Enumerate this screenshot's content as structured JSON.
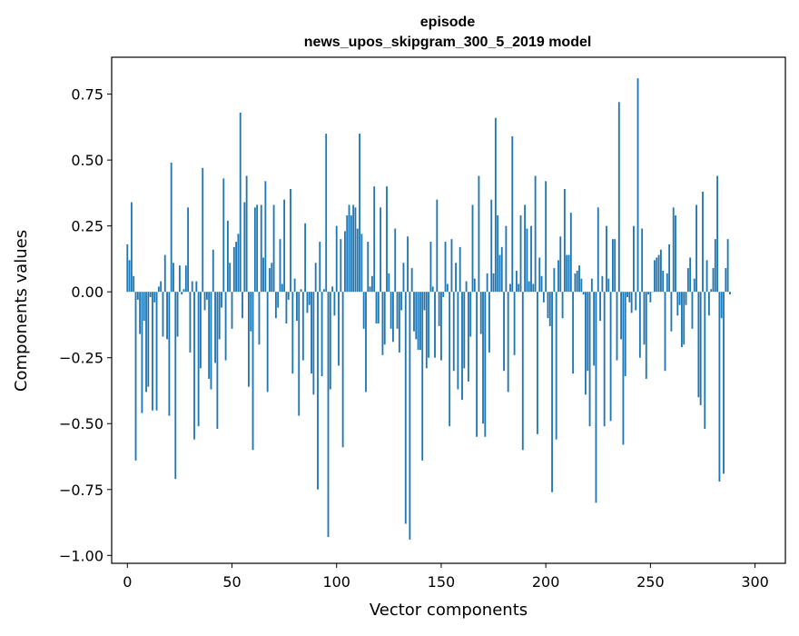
{
  "chart_data": {
    "type": "bar",
    "title": "episode",
    "subtitle": "news_upos_skipgram_300_5_2019 model",
    "xlabel": "Vector components",
    "ylabel": "Components values",
    "xlim": [
      -7.5,
      314.5
    ],
    "ylim": [
      -1.03,
      0.89
    ],
    "xticks": [
      0,
      50,
      100,
      150,
      200,
      250,
      300
    ],
    "xtick_labels": [
      "0",
      "50",
      "100",
      "150",
      "200",
      "250",
      "300"
    ],
    "yticks": [
      0.75,
      0.5,
      0.25,
      0.0,
      -0.25,
      -0.5,
      -0.75,
      -1.0
    ],
    "ytick_labels": [
      "0.75",
      "0.50",
      "0.25",
      "0.00",
      "−0.25",
      "−0.50",
      "−0.75",
      "−1.00"
    ],
    "bar_color": "#1f77b4",
    "grid": false,
    "values": [
      0.18,
      0.12,
      0.34,
      0.06,
      -0.64,
      -0.03,
      -0.16,
      -0.46,
      -0.11,
      -0.38,
      -0.36,
      -0.02,
      -0.45,
      -0.04,
      -0.45,
      0.02,
      0.04,
      -0.17,
      0.14,
      -0.18,
      -0.47,
      0.49,
      0.11,
      -0.71,
      -0.17,
      0.1,
      -0.01,
      0.01,
      0.1,
      0.32,
      -0.23,
      0.04,
      -0.56,
      0.04,
      -0.51,
      -0.29,
      0.47,
      -0.07,
      -0.03,
      -0.33,
      -0.37,
      0.16,
      -0.27,
      -0.52,
      -0.18,
      -0.06,
      0.43,
      -0.26,
      0.27,
      0.11,
      -0.14,
      0.17,
      0.19,
      0.22,
      0.68,
      -0.1,
      0.34,
      0.44,
      -0.36,
      -0.15,
      -0.6,
      0.32,
      0.33,
      -0.2,
      0.33,
      0.13,
      0.42,
      -0.38,
      0.09,
      0.11,
      0.33,
      -0.1,
      -0.06,
      0.2,
      0.03,
      0.35,
      -0.12,
      -0.03,
      0.39,
      -0.31,
      0.05,
      -0.11,
      -0.47,
      0.01,
      -0.26,
      0.26,
      -0.08,
      -0.05,
      -0.31,
      -0.39,
      0.11,
      -0.75,
      0.19,
      -0.32,
      0.01,
      0.6,
      -0.93,
      -0.37,
      0.02,
      -0.09,
      0.25,
      -0.28,
      0.2,
      -0.59,
      0.23,
      0.29,
      0.33,
      0.29,
      0.33,
      0.32,
      0.24,
      0.6,
      0.22,
      -0.14,
      -0.38,
      0.19,
      0.02,
      0.06,
      0.4,
      -0.12,
      -0.12,
      0.32,
      -0.24,
      -0.2,
      0.4,
      0.07,
      -0.14,
      -0.19,
      0.24,
      -0.14,
      -0.23,
      -0.07,
      0.11,
      -0.88,
      0.21,
      -0.94,
      0.09,
      -0.15,
      -0.18,
      -0.22,
      -0.22,
      -0.64,
      -0.07,
      -0.29,
      -0.25,
      0.19,
      0.02,
      -0.25,
      0.35,
      -0.13,
      -0.26,
      -0.02,
      0.19,
      0.03,
      -0.51,
      0.2,
      -0.3,
      0.11,
      -0.37,
      0.17,
      -0.41,
      -0.29,
      0.04,
      -0.34,
      -0.17,
      0.33,
      0.05,
      -0.55,
      0.44,
      -0.16,
      -0.5,
      -0.55,
      0.07,
      -0.23,
      0.35,
      0.07,
      0.66,
      0.29,
      0.14,
      0.17,
      -0.3,
      0.25,
      -0.38,
      0.03,
      0.59,
      -0.24,
      0.08,
      0.03,
      0.29,
      -0.6,
      0.33,
      0.24,
      0.04,
      0.25,
      0.03,
      0.44,
      -0.54,
      0.13,
      0.06,
      -0.04,
      0.42,
      -0.1,
      -0.13,
      -0.76,
      0.09,
      -0.56,
      0.12,
      0.21,
      -0.1,
      0.39,
      0.14,
      0.14,
      0.3,
      -0.31,
      0.07,
      0.08,
      0.1,
      0.05,
      -0.01,
      -0.39,
      -0.3,
      -0.51,
      0.05,
      -0.28,
      -0.8,
      0.32,
      -0.11,
      0.06,
      -0.51,
      0.25,
      0.05,
      -0.49,
      0.2,
      0.2,
      -0.26,
      0.72,
      -0.18,
      -0.58,
      -0.32,
      -0.02,
      -0.04,
      -0.08,
      0.25,
      -0.07,
      0.81,
      -0.25,
      0.24,
      -0.2,
      -0.33,
      -0.01,
      -0.04,
      0.0,
      0.12,
      0.13,
      0.14,
      0.16,
      0.08,
      -0.3,
      0.07,
      0.18,
      -0.15,
      0.32,
      0.29,
      -0.09,
      -0.05,
      -0.21,
      -0.2,
      -0.05,
      0.09,
      0.13,
      -0.14,
      0.05,
      0.33,
      -0.4,
      -0.43,
      0.38,
      -0.52,
      0.12,
      -0.09,
      0.01,
      0.09,
      0.2,
      0.44,
      -0.72,
      -0.1,
      -0.69,
      0.09,
      0.2,
      -0.01
    ]
  }
}
